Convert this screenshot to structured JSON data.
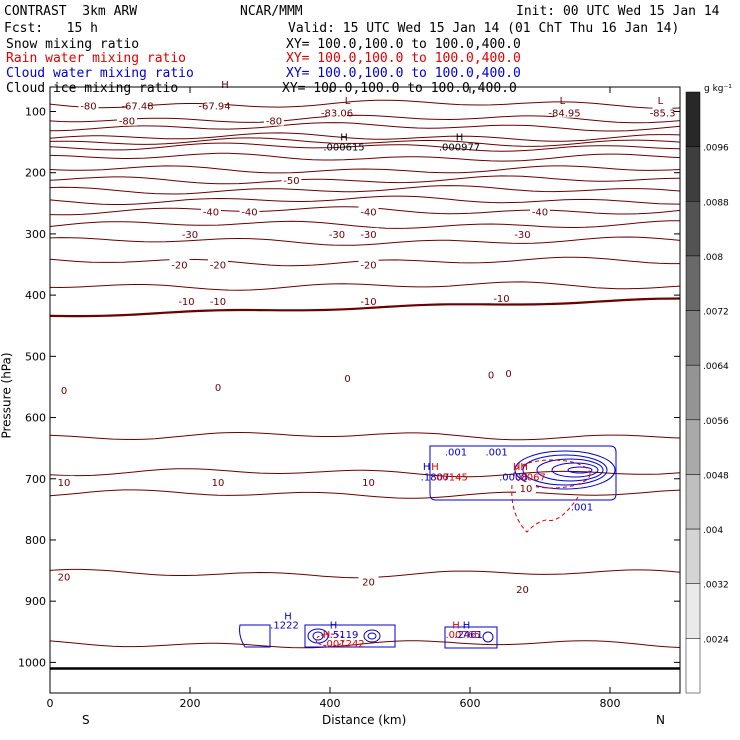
{
  "header": {
    "title": "CONTRAST  3km ARW",
    "center": "NCAR/MMM",
    "init": "Init: 00 UTC Wed 15 Jan 14",
    "fcst": "Fcst:   15 h",
    "valid": "Valid: 15 UTC Wed 15 Jan 14 (01 ChT Thu 16 Jan 14)"
  },
  "fields": [
    {
      "name": "Snow mixing ratio",
      "xy": "XY= 100.0,100.0 to 100.0,400.0",
      "color": "#000000"
    },
    {
      "name": "Rain water mixing ratio",
      "xy": "XY= 100.0,100.0 to 100.0,400.0",
      "color": "#e00000"
    },
    {
      "name": "Cloud water mixing ratio",
      "xy": "XY= 100.0,100.0 to 100.0,400.0",
      "color": "#0000d0"
    },
    {
      "name": "Cloud ice mixing ratio",
      "xy": "XY= 100.0,100.0 to 100.0,400.0",
      "color": "#000000"
    }
  ],
  "colors": {
    "temperature": "#6b0000",
    "rain": "#e00000",
    "cloud": "#0000d0",
    "frame": "#000000"
  },
  "chart_data": {
    "type": "contour",
    "xlabel": "Distance (km)",
    "ylabel": "Pressure (hPa)",
    "xlim": [
      0,
      900
    ],
    "ylim": [
      1050,
      60
    ],
    "x_ticks": [
      0,
      200,
      400,
      600,
      800
    ],
    "y_ticks": [
      100,
      200,
      300,
      400,
      500,
      600,
      700,
      800,
      900,
      1000
    ],
    "x_end_labels": {
      "left": "S",
      "right": "N"
    },
    "colorbar": {
      "unit": "g kg⁻¹",
      "labels": [
        ".0096",
        ".0088",
        ".008",
        ".0072",
        ".0064",
        ".0056",
        ".0048",
        ".004",
        ".0032",
        ".0024"
      ]
    },
    "temperature_contours": [
      {
        "value": -80,
        "p": [
          88,
          112
        ]
      },
      {
        "value": -70,
        "p": [
          125
        ]
      },
      {
        "value": -60,
        "p": [
          142,
          150,
          158
        ]
      },
      {
        "value": -50,
        "p": [
          175
        ]
      },
      {
        "value": -45,
        "p": [
          195
        ]
      },
      {
        "value": -40,
        "p": [
          212
        ]
      },
      {
        "value": -35,
        "p": [
          228
        ]
      },
      {
        "value": -30,
        "p": [
          245
        ]
      },
      {
        "value": -25,
        "p": [
          262
        ]
      },
      {
        "value": -20,
        "p": [
          285
        ]
      },
      {
        "value": -15,
        "p": [
          312
        ]
      },
      {
        "value": -10,
        "p": [
          345
        ]
      },
      {
        "value": -5,
        "p": [
          385
        ]
      },
      {
        "value": 0,
        "p": [
          422
        ],
        "bold": true
      },
      {
        "value": 5,
        "p": [
          630
        ]
      },
      {
        "value": 10,
        "p": [
          690
        ]
      },
      {
        "value": 15,
        "p": [
          725
        ]
      },
      {
        "value": 20,
        "p": [
          855
        ]
      },
      {
        "value": 25,
        "p": [
          970
        ]
      }
    ],
    "contour_labels": [
      {
        "text": "-80",
        "x": 55,
        "p": 90
      },
      {
        "text": "-67.48",
        "x": 125,
        "p": 90
      },
      {
        "text": "-67.94",
        "x": 235,
        "p": 90
      },
      {
        "text": "-80",
        "x": 110,
        "p": 115
      },
      {
        "text": "-80",
        "x": 320,
        "p": 115
      },
      {
        "text": "-83.06",
        "x": 410,
        "p": 102
      },
      {
        "text": "-84.95",
        "x": 735,
        "p": 102
      },
      {
        "text": "-85.3",
        "x": 875,
        "p": 102
      },
      {
        "text": "-50",
        "x": 345,
        "p": 212
      },
      {
        "text": "-40",
        "x": 230,
        "p": 263
      },
      {
        "text": "-40",
        "x": 285,
        "p": 263
      },
      {
        "text": "-40",
        "x": 455,
        "p": 263
      },
      {
        "text": "-40",
        "x": 700,
        "p": 263
      },
      {
        "text": "-30",
        "x": 200,
        "p": 300
      },
      {
        "text": "-30",
        "x": 410,
        "p": 300
      },
      {
        "text": "-30",
        "x": 455,
        "p": 300
      },
      {
        "text": "-30",
        "x": 675,
        "p": 300
      },
      {
        "text": "-20",
        "x": 185,
        "p": 350
      },
      {
        "text": "-20",
        "x": 240,
        "p": 350
      },
      {
        "text": "-20",
        "x": 455,
        "p": 350
      },
      {
        "text": "-10",
        "x": 195,
        "p": 410
      },
      {
        "text": "-10",
        "x": 240,
        "p": 410
      },
      {
        "text": "-10",
        "x": 455,
        "p": 410
      },
      {
        "text": "-10",
        "x": 645,
        "p": 405
      },
      {
        "text": "0",
        "x": 20,
        "p": 555
      },
      {
        "text": "0",
        "x": 240,
        "p": 550
      },
      {
        "text": "0",
        "x": 425,
        "p": 535
      },
      {
        "text": "0",
        "x": 630,
        "p": 530
      },
      {
        "text": "0",
        "x": 655,
        "p": 527
      },
      {
        "text": "10",
        "x": 20,
        "p": 705
      },
      {
        "text": "10",
        "x": 240,
        "p": 705
      },
      {
        "text": "10",
        "x": 455,
        "p": 705
      },
      {
        "text": "10",
        "x": 680,
        "p": 715
      },
      {
        "text": "20",
        "x": 20,
        "p": 860
      },
      {
        "text": "20",
        "x": 455,
        "p": 868
      },
      {
        "text": "20",
        "x": 675,
        "p": 880
      }
    ],
    "extrema_labels": [
      {
        "text": "H",
        "x": 250,
        "p": 62,
        "color": "temperature"
      },
      {
        "text": "L",
        "x": 425,
        "p": 88,
        "color": "temperature"
      },
      {
        "text": "L",
        "x": 732,
        "p": 88,
        "color": "temperature"
      },
      {
        "text": "L",
        "x": 872,
        "p": 88,
        "color": "temperature"
      },
      {
        "text": "H",
        "x": 420,
        "p": 147,
        "color": "frame"
      },
      {
        "text": ".000615",
        "x": 420,
        "p": 164,
        "color": "frame"
      },
      {
        "text": "H",
        "x": 585,
        "p": 147,
        "color": "frame"
      },
      {
        "text": ".000977",
        "x": 585,
        "p": 164,
        "color": "frame"
      },
      {
        "text": ".001",
        "x": 580,
        "p": 662,
        "color": "cloud"
      },
      {
        "text": ".001",
        "x": 638,
        "p": 662,
        "color": "cloud"
      },
      {
        "text": "H",
        "x": 538,
        "p": 686,
        "color": "cloud"
      },
      {
        "text": "H",
        "x": 550,
        "p": 686,
        "color": "rain"
      },
      {
        "text": ".1807",
        "x": 550,
        "p": 703,
        "color": "cloud"
      },
      {
        "text": ".00145",
        "x": 572,
        "p": 703,
        "color": "rain"
      },
      {
        "text": "HH",
        "x": 672,
        "p": 686,
        "color": "rain"
      },
      {
        "text": ".0008",
        "x": 662,
        "p": 703,
        "color": "cloud"
      },
      {
        "text": ".0067",
        "x": 688,
        "p": 703,
        "color": "rain"
      },
      {
        "text": ".001",
        "x": 760,
        "p": 752,
        "color": "cloud"
      },
      {
        "text": "H",
        "x": 340,
        "p": 930,
        "color": "cloud"
      },
      {
        "text": ".1222",
        "x": 335,
        "p": 945,
        "color": "cloud"
      },
      {
        "text": "H",
        "x": 405,
        "p": 945,
        "color": "cloud"
      },
      {
        "text": "H",
        "x": 395,
        "p": 960,
        "color": "rain"
      },
      {
        "text": ".5119",
        "x": 420,
        "p": 960,
        "color": "cloud"
      },
      {
        "text": ".001242",
        "x": 420,
        "p": 975,
        "color": "rain"
      },
      {
        "text": "H",
        "x": 580,
        "p": 945,
        "color": "rain"
      },
      {
        "text": "H",
        "x": 595,
        "p": 945,
        "color": "cloud"
      },
      {
        "text": ".00765",
        "x": 590,
        "p": 960,
        "color": "rain"
      },
      {
        "text": ".2461",
        "x": 598,
        "p": 960,
        "color": "cloud"
      }
    ]
  }
}
